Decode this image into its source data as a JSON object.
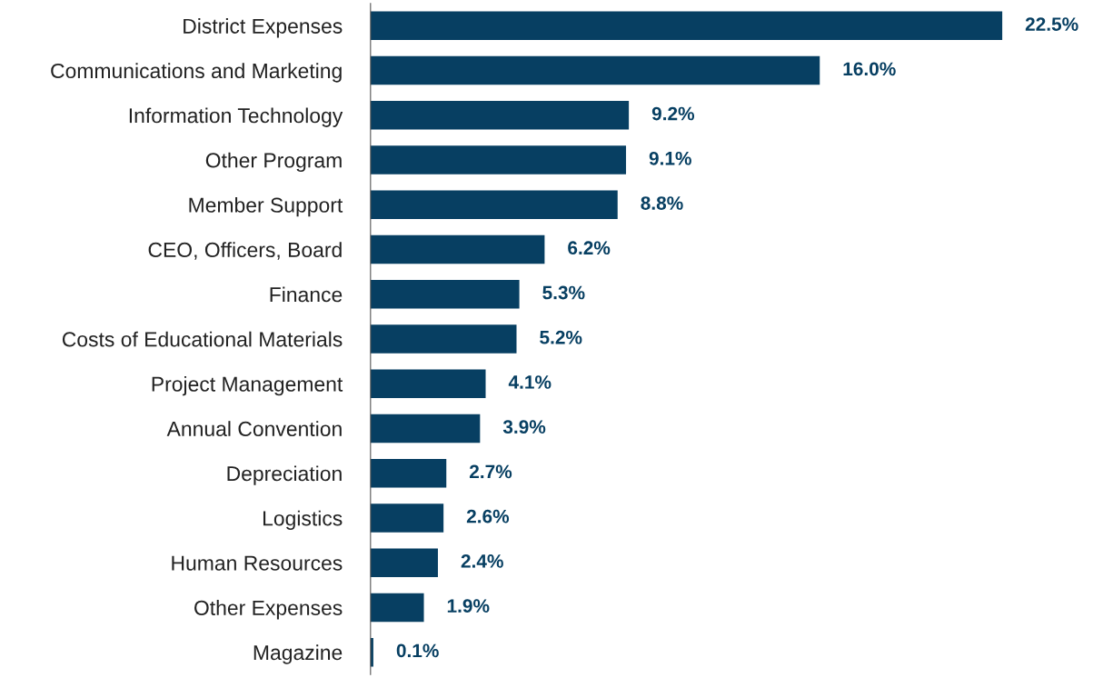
{
  "chart_data": {
    "type": "bar",
    "orientation": "horizontal",
    "categories": [
      "District Expenses",
      "Communications and Marketing",
      "Information Technology",
      "Other Program",
      "Member Support",
      "CEO, Officers, Board",
      "Finance",
      "Costs of Educational Materials",
      "Project Management",
      "Annual Convention",
      "Depreciation",
      "Logistics",
      "Human Resources",
      "Other Expenses",
      "Magazine"
    ],
    "values": [
      22.5,
      16.0,
      9.2,
      9.1,
      8.8,
      6.2,
      5.3,
      5.2,
      4.1,
      3.9,
      2.7,
      2.6,
      2.4,
      1.9,
      0.1
    ],
    "value_labels": [
      "22.5%",
      "16.0%",
      "9.2%",
      "9.1%",
      "8.8%",
      "6.2%",
      "5.3%",
      "5.2%",
      "4.1%",
      "3.9%",
      "2.7%",
      "2.6%",
      "2.4%",
      "1.9%",
      "0.1%"
    ],
    "color": "#073f62",
    "grid": false,
    "legend": false
  }
}
